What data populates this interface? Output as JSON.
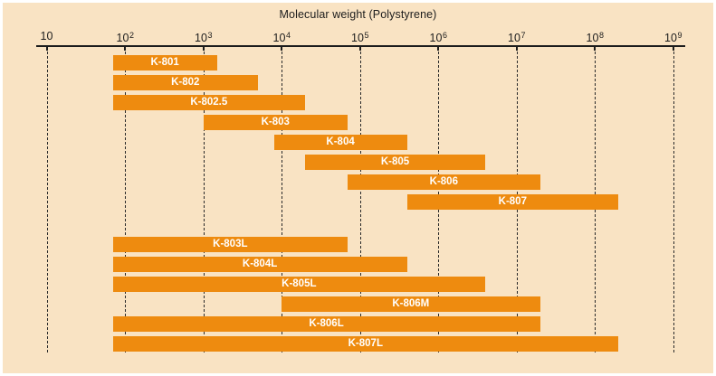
{
  "colors": {
    "panel_background": "#f9e3c3",
    "bar_fill": "#ee8b0f",
    "bar_label_text": "#ffffff",
    "axis_and_text": "#1c1c1c",
    "gridline": "#2a2a2a"
  },
  "chart_data": {
    "type": "bar",
    "subtype": "horizontal-range-bars",
    "title": "Molecular weight (Polystyrene)",
    "x_scale": "log10",
    "xlim": [
      10,
      1000000000
    ],
    "grid": "vertical-dashed-per-decade",
    "legend_position": "none",
    "x_ticks": [
      {
        "base": "10",
        "exp": ""
      },
      {
        "base": "10",
        "exp": "2"
      },
      {
        "base": "10",
        "exp": "3"
      },
      {
        "base": "10",
        "exp": "4"
      },
      {
        "base": "10",
        "exp": "5"
      },
      {
        "base": "10",
        "exp": "6"
      },
      {
        "base": "10",
        "exp": "7"
      },
      {
        "base": "10",
        "exp": "8"
      },
      {
        "base": "10",
        "exp": "9"
      }
    ],
    "groups": [
      {
        "name": "standard-columns",
        "bars": [
          {
            "label": "K-801",
            "mw_min": 70,
            "mw_max": 1500
          },
          {
            "label": "K-802",
            "mw_min": 70,
            "mw_max": 5000
          },
          {
            "label": "K-802.5",
            "mw_min": 70,
            "mw_max": 20000
          },
          {
            "label": "K-803",
            "mw_min": 1000,
            "mw_max": 70000
          },
          {
            "label": "K-804",
            "mw_min": 8000,
            "mw_max": 400000
          },
          {
            "label": "K-805",
            "mw_min": 20000,
            "mw_max": 4000000
          },
          {
            "label": "K-806",
            "mw_min": 70000,
            "mw_max": 20000000
          },
          {
            "label": "K-807",
            "mw_min": 400000,
            "mw_max": 200000000
          }
        ]
      },
      {
        "name": "linear-columns",
        "bars": [
          {
            "label": "K-803L",
            "mw_min": 70,
            "mw_max": 70000
          },
          {
            "label": "K-804L",
            "mw_min": 70,
            "mw_max": 400000
          },
          {
            "label": "K-805L",
            "mw_min": 70,
            "mw_max": 4000000
          },
          {
            "label": "K-806M",
            "mw_min": 10000,
            "mw_max": 20000000
          },
          {
            "label": "K-806L",
            "mw_min": 70,
            "mw_max": 20000000
          },
          {
            "label": "K-807L",
            "mw_min": 70,
            "mw_max": 200000000
          }
        ]
      }
    ]
  }
}
